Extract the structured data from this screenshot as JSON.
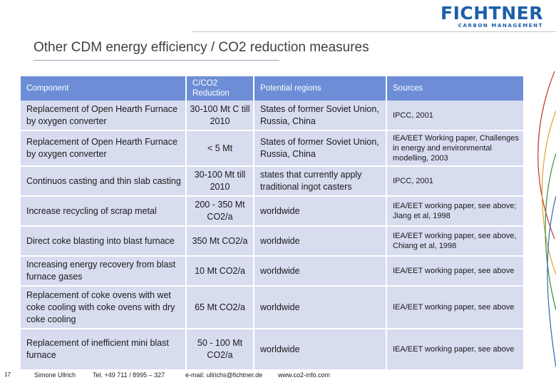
{
  "logo": {
    "name": "FICHTNER",
    "subtitle": "CARBON MANAGEMENT"
  },
  "title": "Other CDM energy efficiency / CO2 reduction measures",
  "table": {
    "headers": [
      "Component",
      "C/CO2 Reduction",
      "Potential regions",
      "Sources"
    ],
    "rows": [
      {
        "component": "Replacement of Open Hearth Furnace by oxygen converter",
        "reduction": "30-100 Mt C till 2010",
        "regions": "States of former Soviet Union, Russia, China",
        "sources": "IPCC, 2001"
      },
      {
        "component": "Replacement of Open Hearth Furnace by oxygen converter",
        "reduction": "< 5 Mt",
        "regions": "States of former Soviet Union, Russia, China",
        "sources": "IEA/EET Working paper, Challenges in energy and environmental modelling, 2003"
      },
      {
        "component": "Continuos casting and thin slab casting",
        "reduction": "30-100 Mt till 2010",
        "regions": "states that currently apply traditional ingot casters",
        "sources": "IPCC, 2001"
      },
      {
        "component": "Increase recycling of scrap metal",
        "reduction": "200 - 350 Mt CO2/a",
        "regions": "worldwide",
        "sources": "IEA/EET working paper, see above; Jiang et al, 1998"
      },
      {
        "component": "Direct coke blasting into blast furnace",
        "reduction": "350 Mt CO2/a",
        "regions": "worldwide",
        "sources": "IEA/EET working paper, see above, Chiang et al, 1998"
      },
      {
        "component": "Increasing energy recovery from blast furnace gases",
        "reduction": "10 Mt CO2/a",
        "regions": "worldwide",
        "sources": "IEA/EET working paper, see above"
      },
      {
        "component": "Replacement of coke ovens with wet coke cooling with coke ovens with dry coke cooling",
        "reduction": "65 Mt CO2/a",
        "regions": "worldwide",
        "sources": "IEA/EET working paper, see above"
      },
      {
        "component": "Replacement of inefficient mini blast furnace",
        "reduction": "50 - 100 Mt CO2/a",
        "regions": "worldwide",
        "sources": "IEA/EET working paper, see above"
      }
    ]
  },
  "footer": {
    "page": "17",
    "author": "Simone Ullrich",
    "tel": "Tel. +49 711 / 8995 – 327",
    "email": "e-mail: ullrichs@fichtner.de",
    "web": "www.co2-info.com"
  },
  "colors": {
    "brand": "#1b5fa8",
    "header_bg": "#6d8ed6",
    "row_bg": "#d7dcef"
  }
}
